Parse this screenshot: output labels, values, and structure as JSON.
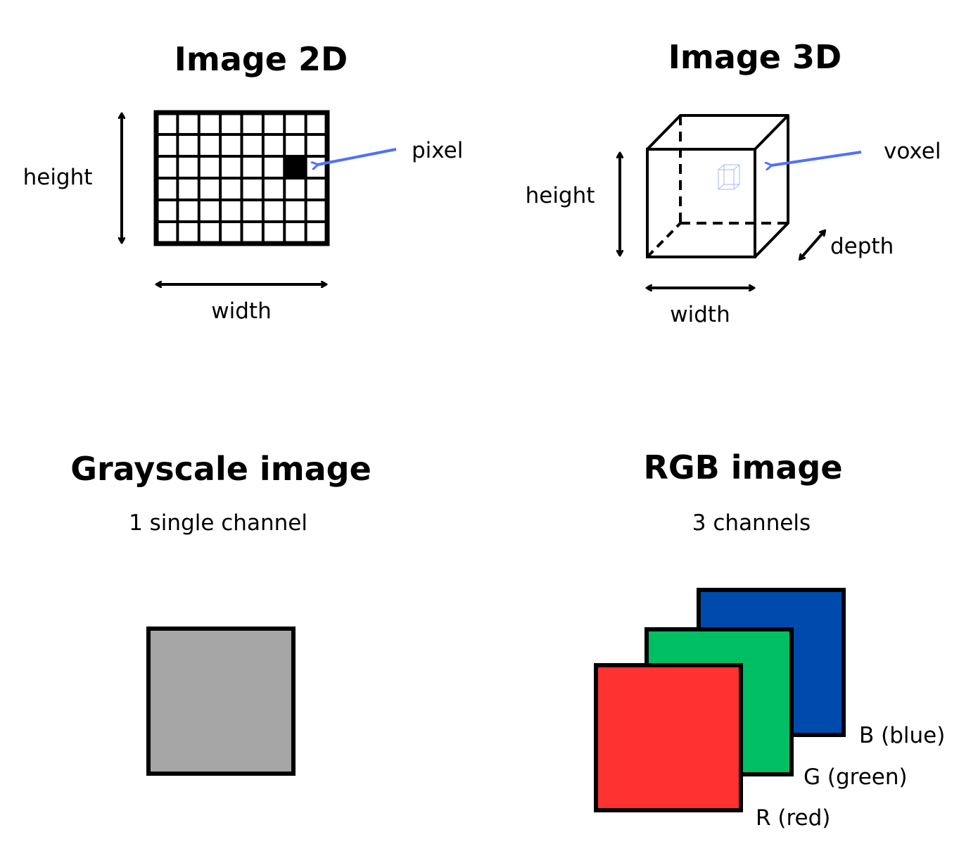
{
  "image2d": {
    "title": "Image 2D",
    "height_label": "height",
    "width_label": "width",
    "pixel_label": "pixel",
    "grid_columns": 8,
    "grid_rows": 6,
    "highlighted_cell": {
      "column": 7,
      "row": 3
    }
  },
  "image3d": {
    "title": "Image 3D",
    "height_label": "height",
    "width_label": "width",
    "depth_label": "depth",
    "voxel_label": "voxel"
  },
  "grayscale": {
    "title": "Grayscale image",
    "subtitle": "1 single channel",
    "color": "#a6a6a6"
  },
  "rgb": {
    "title": "RGB image",
    "subtitle": "3 channels",
    "channels": [
      {
        "label": "B (blue)",
        "color": "#004aad"
      },
      {
        "label": "G (green)",
        "color": "#00bf63"
      },
      {
        "label": "R (red)",
        "color": "#ff3131"
      }
    ]
  },
  "colors": {
    "pointer_arrow": "#5170ff",
    "outline": "#000000"
  }
}
